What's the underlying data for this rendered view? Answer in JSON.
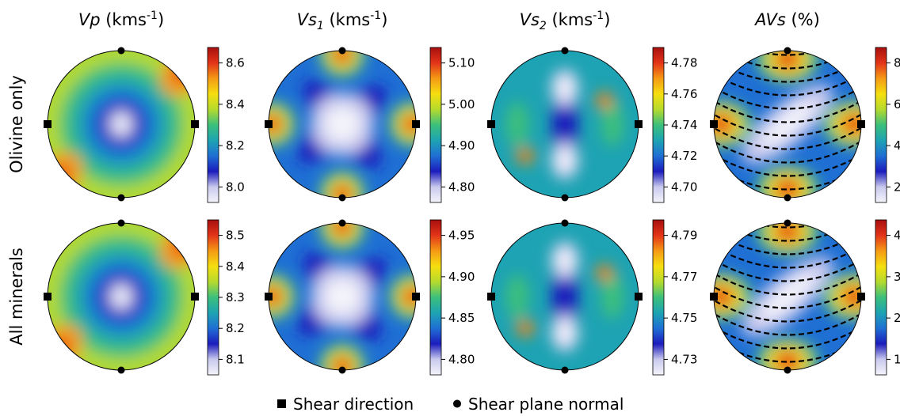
{
  "columns": [
    {
      "symbol": "Vp",
      "sub": "",
      "unit_main": " (kms",
      "unit_sup": "-1",
      "unit_end": ")"
    },
    {
      "symbol": "Vs",
      "sub": "1",
      "unit_main": " (kms",
      "unit_sup": "-1",
      "unit_end": ")"
    },
    {
      "symbol": "Vs",
      "sub": "2",
      "unit_main": " (kms",
      "unit_sup": "-1",
      "unit_end": ")"
    },
    {
      "symbol": "AVs",
      "sub": "",
      "unit_main": " (%)",
      "unit_sup": "",
      "unit_end": ""
    }
  ],
  "rows": [
    {
      "label": "Olivine only"
    },
    {
      "label": "All minerals"
    }
  ],
  "colorbars": [
    [
      {
        "ticks": [
          "8.6",
          "8.4",
          "8.2",
          "8.0"
        ]
      },
      {
        "ticks": [
          "5.10",
          "5.00",
          "4.90",
          "4.80"
        ]
      },
      {
        "ticks": [
          "4.78",
          "4.76",
          "4.74",
          "4.72",
          "4.70"
        ]
      },
      {
        "ticks": [
          "8",
          "6",
          "4",
          "2"
        ]
      }
    ],
    [
      {
        "ticks": [
          "8.5",
          "8.4",
          "8.3",
          "8.2",
          "8.1"
        ]
      },
      {
        "ticks": [
          "4.95",
          "4.90",
          "4.85",
          "4.80"
        ]
      },
      {
        "ticks": [
          "4.79",
          "4.77",
          "4.75",
          "4.73"
        ]
      },
      {
        "ticks": [
          "4",
          "3",
          "2",
          "1"
        ]
      }
    ]
  ],
  "legend": {
    "shear_direction": "Shear direction",
    "shear_plane_normal": "Shear plane normal"
  },
  "colors": {
    "colormap": [
      "#f4f4fb",
      "#c9c9ee",
      "#1c1cbc",
      "#1f6fd4",
      "#1da3b3",
      "#3cc07c",
      "#b5da2d",
      "#f5df10",
      "#f59a15",
      "#e33418",
      "#a80f0f"
    ]
  }
}
